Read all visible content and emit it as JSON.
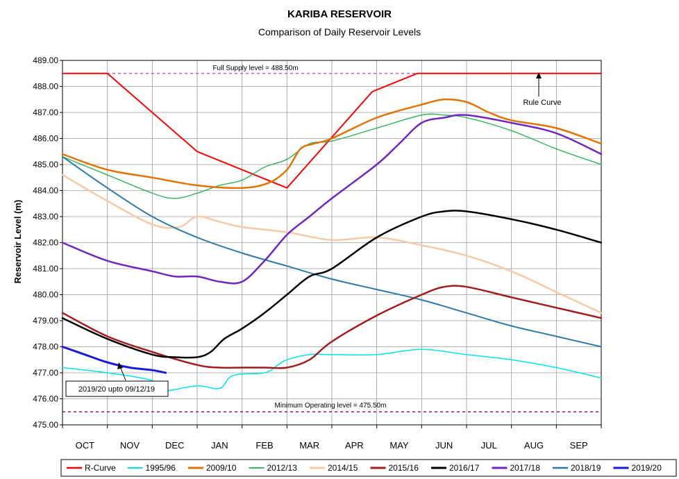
{
  "chart_data": {
    "type": "line",
    "title": "KARIBA RESERVOIR",
    "subtitle": "Comparison of Daily Reservoir Levels",
    "ylabel": "Reservoir Level (m)",
    "xlabel": "",
    "ylim": [
      475.0,
      489.0
    ],
    "y_ticks": [
      "475.00",
      "476.00",
      "477.00",
      "478.00",
      "479.00",
      "480.00",
      "481.00",
      "482.00",
      "483.00",
      "484.00",
      "485.00",
      "486.00",
      "487.00",
      "488.00",
      "489.00"
    ],
    "months": [
      "OCT",
      "NOV",
      "DEC",
      "JAN",
      "FEB",
      "MAR",
      "APR",
      "MAY",
      "JUN",
      "JUL",
      "AUG",
      "SEP"
    ],
    "x_unit": "months elapsed from start of October",
    "x_range": [
      0,
      12
    ],
    "grid": true,
    "legend_position": "bottom",
    "annotations": {
      "full_supply": "Full Supply level = 488.50m",
      "min_operating": "Minimum Operating level = 475.50m",
      "rule_curve": "Rule Curve",
      "current": "2019/20 upto 09/12/19"
    },
    "reference_lines": {
      "full_supply": 488.5,
      "min_operating": 475.5
    },
    "series": [
      {
        "name": "R-Curve",
        "color": "#ff0000",
        "width": 2,
        "x": [
          0,
          1.0,
          3.0,
          5.0,
          6.9,
          7.9,
          12
        ],
        "y": [
          488.5,
          488.5,
          485.5,
          484.1,
          487.8,
          488.5,
          488.5
        ]
      },
      {
        "name": "1995/96",
        "color": "#00e5ee",
        "width": 1.5,
        "x": [
          0,
          1.0,
          2.0,
          2.2,
          3.0,
          3.5,
          3.8,
          4.5,
          4.8,
          5.0,
          5.5,
          6.0,
          7.0,
          8.0,
          9.0,
          10.0,
          11.0,
          12.0
        ],
        "y": [
          477.2,
          477.0,
          476.7,
          476.3,
          476.5,
          476.4,
          476.9,
          477.0,
          477.3,
          477.5,
          477.7,
          477.7,
          477.7,
          477.9,
          477.7,
          477.5,
          477.2,
          476.8
        ]
      },
      {
        "name": "2009/10",
        "color": "#e37300",
        "width": 2.5,
        "x": [
          0,
          1.0,
          2.0,
          3.0,
          4.0,
          4.6,
          5.0,
          5.3,
          5.6,
          6.0,
          7.0,
          8.0,
          8.5,
          9.0,
          9.5,
          10.0,
          11.0,
          12.0
        ],
        "y": [
          485.4,
          484.8,
          484.5,
          484.2,
          484.1,
          484.3,
          484.8,
          485.6,
          485.8,
          486.0,
          486.8,
          487.3,
          487.5,
          487.4,
          487.0,
          486.7,
          486.4,
          485.8
        ]
      },
      {
        "name": "2012/13",
        "color": "#21b04b",
        "width": 1.3,
        "x": [
          0,
          1.0,
          2.0,
          2.5,
          3.0,
          3.5,
          4.0,
          4.5,
          5.0,
          5.5,
          6.0,
          7.0,
          8.0,
          8.5,
          9.0,
          10.0,
          11.0,
          12.0
        ],
        "y": [
          485.3,
          484.6,
          483.9,
          483.7,
          483.9,
          484.2,
          484.4,
          484.9,
          485.2,
          485.8,
          485.9,
          486.4,
          486.9,
          486.9,
          486.8,
          486.3,
          485.6,
          485.0
        ]
      },
      {
        "name": "2014/15",
        "color": "#f9c9a6",
        "width": 2.5,
        "x": [
          0,
          1.0,
          2.0,
          2.6,
          3.0,
          3.5,
          4.0,
          5.0,
          6.0,
          7.0,
          8.0,
          9.0,
          10.0,
          11.0,
          12.0
        ],
        "y": [
          484.6,
          483.6,
          482.7,
          482.6,
          483.0,
          482.8,
          482.6,
          482.4,
          482.1,
          482.2,
          481.9,
          481.5,
          480.9,
          480.1,
          479.3
        ]
      },
      {
        "name": "2015/16",
        "color": "#a21c1c",
        "width": 2.5,
        "x": [
          0,
          1.0,
          2.0,
          3.0,
          3.5,
          4.0,
          4.5,
          5.0,
          5.5,
          6.0,
          7.0,
          8.0,
          8.5,
          9.0,
          10.0,
          11.0,
          12.0
        ],
        "y": [
          479.3,
          478.4,
          477.8,
          477.3,
          477.2,
          477.2,
          477.2,
          477.2,
          477.5,
          478.2,
          479.2,
          480.0,
          480.3,
          480.3,
          479.9,
          479.5,
          479.1
        ]
      },
      {
        "name": "2016/17",
        "color": "#000000",
        "width": 2.5,
        "x": [
          0,
          1.0,
          2.0,
          2.5,
          3.0,
          3.3,
          3.6,
          4.0,
          4.5,
          5.0,
          5.5,
          6.0,
          7.0,
          8.0,
          8.5,
          9.0,
          10.0,
          11.0,
          12.0
        ],
        "y": [
          479.1,
          478.3,
          477.7,
          477.6,
          477.6,
          477.8,
          478.3,
          478.7,
          479.3,
          480.0,
          480.7,
          481.0,
          482.2,
          483.0,
          483.2,
          483.2,
          482.9,
          482.5,
          482.0
        ]
      },
      {
        "name": "2017/18",
        "color": "#7025c2",
        "width": 2.5,
        "x": [
          0,
          1.0,
          2.0,
          2.5,
          3.0,
          3.5,
          4.0,
          4.5,
          5.0,
          5.5,
          6.0,
          7.0,
          7.5,
          8.0,
          8.5,
          9.0,
          10.0,
          11.0,
          12.0
        ],
        "y": [
          482.0,
          481.3,
          480.9,
          480.7,
          480.7,
          480.5,
          480.5,
          481.3,
          482.3,
          483.0,
          483.7,
          485.0,
          485.8,
          486.6,
          486.8,
          486.9,
          486.6,
          486.2,
          485.4
        ]
      },
      {
        "name": "2018/19",
        "color": "#2a79a8",
        "width": 2,
        "x": [
          0,
          1.0,
          2.0,
          3.0,
          4.0,
          5.0,
          6.0,
          7.0,
          8.0,
          9.0,
          10.0,
          11.0,
          12.0
        ],
        "y": [
          485.3,
          484.1,
          483.0,
          482.2,
          481.6,
          481.1,
          480.6,
          480.2,
          479.8,
          479.3,
          478.8,
          478.4,
          478.0
        ]
      },
      {
        "name": "2019/20",
        "color": "#1a1ad9",
        "width": 3,
        "x": [
          0,
          0.5,
          1.0,
          1.5,
          2.0,
          2.3
        ],
        "y": [
          478.0,
          477.7,
          477.4,
          477.2,
          477.1,
          477.0
        ]
      }
    ]
  }
}
